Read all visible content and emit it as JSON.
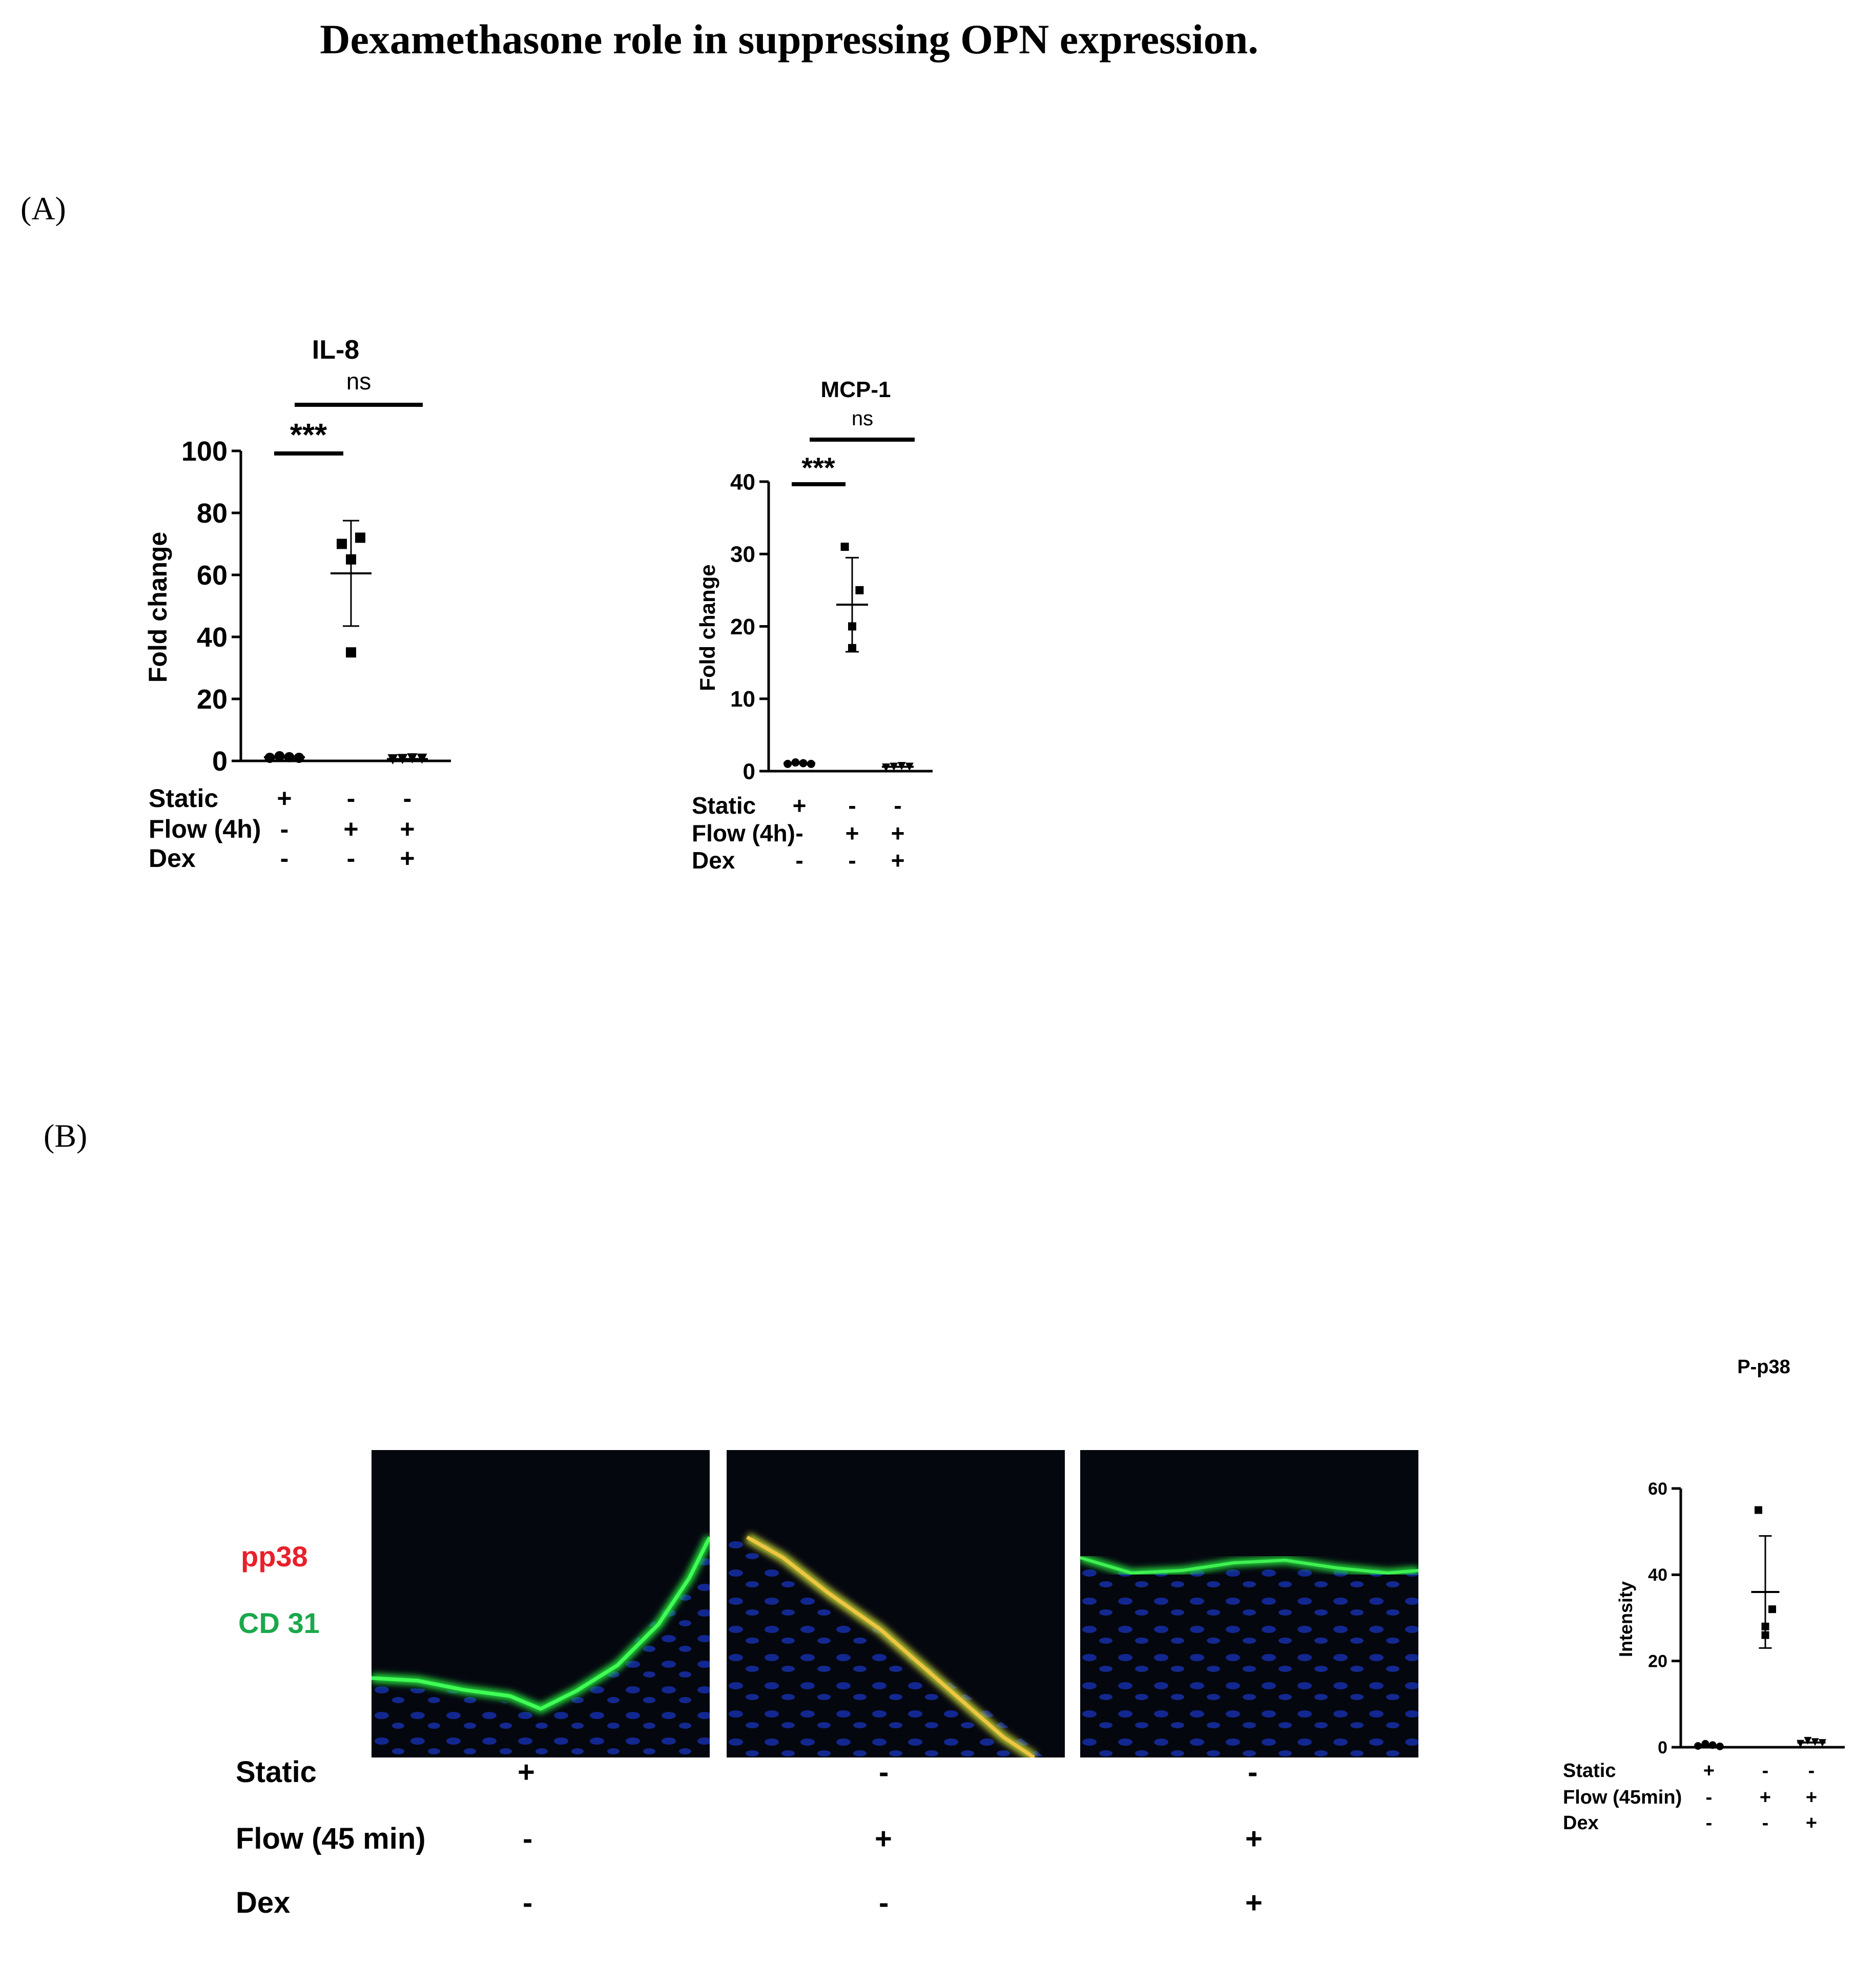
{
  "figure": {
    "title": "Dexamethasone role in  suppressing OPN expression.",
    "panel_a_label": "(A)",
    "panel_b_label": "(B)"
  },
  "micrograph": {
    "stain_red_label": "pp38",
    "stain_green_label": "CD 31",
    "stain_red_color": "#e8202a",
    "stain_green_color": "#1aa84a",
    "conditions": [
      {
        "name": "Static",
        "values": [
          "+",
          "-",
          "-"
        ]
      },
      {
        "name": "Flow (45 min)",
        "values": [
          "-",
          "+",
          "+"
        ]
      },
      {
        "name": "Dex",
        "values": [
          "-",
          "-",
          "+"
        ]
      }
    ]
  },
  "chart_data": [
    {
      "type": "scatter",
      "title": "IL-8",
      "ylabel": "Fold change",
      "ylim": [
        0,
        100
      ],
      "yticks": [
        0,
        20,
        40,
        60,
        80,
        100
      ],
      "groups": [
        {
          "points": [
            1,
            1.5,
            1.2,
            1
          ],
          "mean": 1.2,
          "sd": 0
        },
        {
          "points": [
            70,
            72,
            65,
            35
          ],
          "mean": 60.5,
          "sd": 17
        },
        {
          "points": [
            0.5,
            0.6,
            0.8,
            0.7
          ],
          "mean": 0.6,
          "sd": 0
        }
      ],
      "significance": [
        {
          "label": "***",
          "from": 0,
          "to": 1
        },
        {
          "label": "ns",
          "from": 1,
          "to": 2
        }
      ],
      "conditions": [
        {
          "name": "Static",
          "values": [
            "+",
            "-",
            "-"
          ]
        },
        {
          "name": "Flow (4h)",
          "values": [
            "-",
            "+",
            "+"
          ]
        },
        {
          "name": "Dex",
          "values": [
            "-",
            "-",
            "+"
          ]
        }
      ]
    },
    {
      "type": "scatter",
      "title": "MCP-1",
      "ylabel": "Fold change",
      "ylim": [
        0,
        40
      ],
      "yticks": [
        0,
        10,
        20,
        30,
        40
      ],
      "groups": [
        {
          "points": [
            1,
            1.2,
            1.1,
            1
          ],
          "mean": 1.1,
          "sd": 0
        },
        {
          "points": [
            31,
            25,
            20,
            17
          ],
          "mean": 23,
          "sd": 6.5
        },
        {
          "points": [
            0.5,
            0.6,
            0.7,
            0.6
          ],
          "mean": 0.6,
          "sd": 0
        }
      ],
      "significance": [
        {
          "label": "***",
          "from": 0,
          "to": 1
        },
        {
          "label": "ns",
          "from": 1,
          "to": 2
        }
      ],
      "conditions": [
        {
          "name": "Static",
          "values": [
            "+",
            "-",
            "-"
          ]
        },
        {
          "name": "Flow (4h)",
          "values": [
            "-",
            "+",
            "+"
          ]
        },
        {
          "name": "Dex",
          "values": [
            "-",
            "-",
            "+"
          ]
        }
      ]
    },
    {
      "type": "scatter",
      "title": "P-p38",
      "ylabel": "Intensity",
      "ylim": [
        0,
        60
      ],
      "yticks": [
        0,
        20,
        40,
        60
      ],
      "groups": [
        {
          "points": [
            0.3,
            0.8,
            0.5,
            0.2
          ],
          "mean": 0.4,
          "sd": 0
        },
        {
          "points": [
            55,
            32,
            28,
            26
          ],
          "mean": 36,
          "sd": 13
        },
        {
          "points": [
            0.8,
            1.5,
            1.2,
            1
          ],
          "mean": 1.1,
          "sd": 0
        }
      ],
      "significance": [],
      "conditions": [
        {
          "name": "Static",
          "values": [
            "+",
            "-",
            "-"
          ]
        },
        {
          "name": "Flow (45min)",
          "values": [
            "-",
            "+",
            "+"
          ]
        },
        {
          "name": "Dex",
          "values": [
            "-",
            "-",
            "+"
          ]
        }
      ]
    }
  ]
}
